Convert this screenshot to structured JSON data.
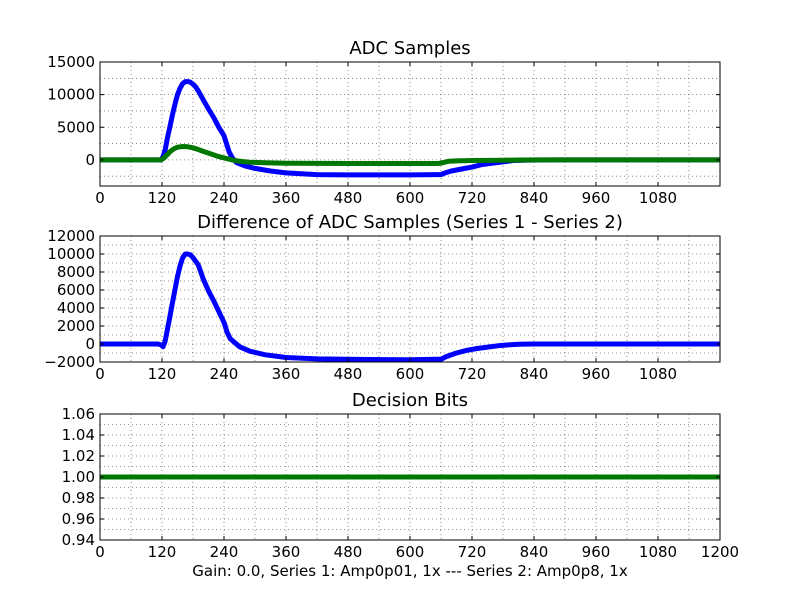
{
  "figure_caption": "Gain: 0.0, Series 1: Amp0p01, 1x --- Series 2: Amp0p8, 1x",
  "chart_data": [
    {
      "type": "scatter",
      "title": "ADC Samples",
      "xlabel": "",
      "ylabel": "",
      "xlim": [
        0,
        1200
      ],
      "ylim": [
        -4000,
        15000
      ],
      "grid": true,
      "x_ticks": [
        0,
        120,
        240,
        360,
        480,
        600,
        720,
        840,
        960,
        1080
      ],
      "x_tick_labels": [
        "0",
        "120",
        "240",
        "360",
        "480",
        "600",
        "720",
        "840",
        "960",
        "1080"
      ],
      "y_ticks": [
        0,
        5000,
        10000,
        15000
      ],
      "y_tick_labels": [
        "0",
        "5000",
        "10000",
        "15000"
      ],
      "series": [
        {
          "name": "Series 1",
          "color": "#0000ff",
          "points": [
            [
              0,
              0
            ],
            [
              118,
              0
            ],
            [
              122,
              500
            ],
            [
              126,
              1500
            ],
            [
              130,
              3200
            ],
            [
              135,
              5000
            ],
            [
              140,
              6800
            ],
            [
              145,
              8500
            ],
            [
              150,
              10000
            ],
            [
              155,
              11000
            ],
            [
              160,
              11700
            ],
            [
              165,
              12000
            ],
            [
              170,
              12000
            ],
            [
              175,
              11900
            ],
            [
              180,
              11600
            ],
            [
              185,
              11200
            ],
            [
              190,
              10600
            ],
            [
              200,
              9200
            ],
            [
              210,
              7800
            ],
            [
              220,
              6500
            ],
            [
              230,
              5000
            ],
            [
              240,
              3700
            ],
            [
              246,
              2200
            ],
            [
              250,
              1200
            ],
            [
              256,
              300
            ],
            [
              264,
              -400
            ],
            [
              280,
              -900
            ],
            [
              300,
              -1300
            ],
            [
              330,
              -1700
            ],
            [
              360,
              -2000
            ],
            [
              420,
              -2250
            ],
            [
              480,
              -2300
            ],
            [
              600,
              -2300
            ],
            [
              650,
              -2250
            ],
            [
              660,
              -2250
            ],
            [
              668,
              -2000
            ],
            [
              680,
              -1700
            ],
            [
              700,
              -1400
            ],
            [
              720,
              -1100
            ],
            [
              740,
              -700
            ],
            [
              760,
              -500
            ],
            [
              780,
              -300
            ],
            [
              800,
              -100
            ],
            [
              840,
              -20
            ],
            [
              900,
              0
            ],
            [
              1200,
              0
            ]
          ]
        },
        {
          "name": "Series 2",
          "color": "#007700",
          "points": [
            [
              0,
              0
            ],
            [
              118,
              0
            ],
            [
              124,
              300
            ],
            [
              130,
              800
            ],
            [
              136,
              1300
            ],
            [
              144,
              1750
            ],
            [
              150,
              1950
            ],
            [
              160,
              2050
            ],
            [
              170,
              2000
            ],
            [
              180,
              1850
            ],
            [
              190,
              1600
            ],
            [
              200,
              1300
            ],
            [
              215,
              900
            ],
            [
              230,
              500
            ],
            [
              240,
              300
            ],
            [
              250,
              100
            ],
            [
              260,
              -100
            ],
            [
              275,
              -250
            ],
            [
              290,
              -350
            ],
            [
              320,
              -450
            ],
            [
              360,
              -500
            ],
            [
              480,
              -550
            ],
            [
              600,
              -550
            ],
            [
              655,
              -550
            ],
            [
              665,
              -400
            ],
            [
              675,
              -200
            ],
            [
              690,
              -150
            ],
            [
              720,
              -100
            ],
            [
              760,
              -70
            ],
            [
              800,
              -30
            ],
            [
              840,
              0
            ],
            [
              1200,
              0
            ]
          ]
        }
      ]
    },
    {
      "type": "scatter",
      "title": "Difference of ADC Samples (Series 1 - Series 2)",
      "xlabel": "",
      "ylabel": "",
      "xlim": [
        0,
        1200
      ],
      "ylim": [
        -2000,
        12000
      ],
      "grid": true,
      "x_ticks": [
        0,
        120,
        240,
        360,
        480,
        600,
        720,
        840,
        960,
        1080
      ],
      "x_tick_labels": [
        "0",
        "120",
        "240",
        "360",
        "480",
        "600",
        "720",
        "840",
        "960",
        "1080"
      ],
      "y_ticks": [
        -2000,
        0,
        2000,
        4000,
        6000,
        8000,
        10000,
        12000
      ],
      "y_tick_labels": [
        "−2000",
        "0",
        "2000",
        "4000",
        "6000",
        "8000",
        "10000",
        "12000"
      ],
      "series": [
        {
          "name": "Series 1 - Series 2",
          "color": "#0000ff",
          "points": [
            [
              0,
              0
            ],
            [
              112,
              0
            ],
            [
              118,
              -100
            ],
            [
              122,
              -300
            ],
            [
              126,
              300
            ],
            [
              130,
              1500
            ],
            [
              135,
              3000
            ],
            [
              140,
              4500
            ],
            [
              145,
              6000
            ],
            [
              150,
              7500
            ],
            [
              155,
              8700
            ],
            [
              160,
              9600
            ],
            [
              165,
              10000
            ],
            [
              170,
              10000
            ],
            [
              175,
              9900
            ],
            [
              180,
              9600
            ],
            [
              185,
              9200
            ],
            [
              190,
              8800
            ],
            [
              195,
              8000
            ],
            [
              200,
              7200
            ],
            [
              210,
              5900
            ],
            [
              220,
              4800
            ],
            [
              230,
              3600
            ],
            [
              240,
              2400
            ],
            [
              246,
              1300
            ],
            [
              252,
              600
            ],
            [
              260,
              200
            ],
            [
              270,
              -300
            ],
            [
              290,
              -800
            ],
            [
              320,
              -1200
            ],
            [
              360,
              -1500
            ],
            [
              420,
              -1650
            ],
            [
              480,
              -1700
            ],
            [
              600,
              -1750
            ],
            [
              650,
              -1700
            ],
            [
              660,
              -1700
            ],
            [
              670,
              -1400
            ],
            [
              690,
              -1000
            ],
            [
              710,
              -700
            ],
            [
              730,
              -500
            ],
            [
              750,
              -350
            ],
            [
              770,
              -200
            ],
            [
              790,
              -100
            ],
            [
              810,
              -30
            ],
            [
              840,
              0
            ],
            [
              1200,
              0
            ]
          ]
        }
      ]
    },
    {
      "type": "scatter",
      "title": "Decision Bits",
      "xlabel": "Gain: 0.0, Series 1: Amp0p01, 1x --- Series 2: Amp0p8, 1x",
      "ylabel": "",
      "xlim": [
        0,
        1200
      ],
      "ylim": [
        0.94,
        1.06
      ],
      "grid": true,
      "x_ticks": [
        0,
        120,
        240,
        360,
        480,
        600,
        720,
        840,
        960,
        1080,
        1200
      ],
      "x_tick_labels": [
        "0",
        "120",
        "240",
        "360",
        "480",
        "600",
        "720",
        "840",
        "960",
        "1080",
        "1200"
      ],
      "y_ticks": [
        0.94,
        0.96,
        0.98,
        1.0,
        1.02,
        1.04,
        1.06
      ],
      "y_tick_labels": [
        "0.94",
        "0.96",
        "0.98",
        "1.00",
        "1.02",
        "1.04",
        "1.06"
      ],
      "series": [
        {
          "name": "Decision Bits",
          "color": "#007700",
          "points": [
            [
              0,
              1.0
            ],
            [
              1200,
              1.0
            ]
          ]
        }
      ]
    }
  ]
}
